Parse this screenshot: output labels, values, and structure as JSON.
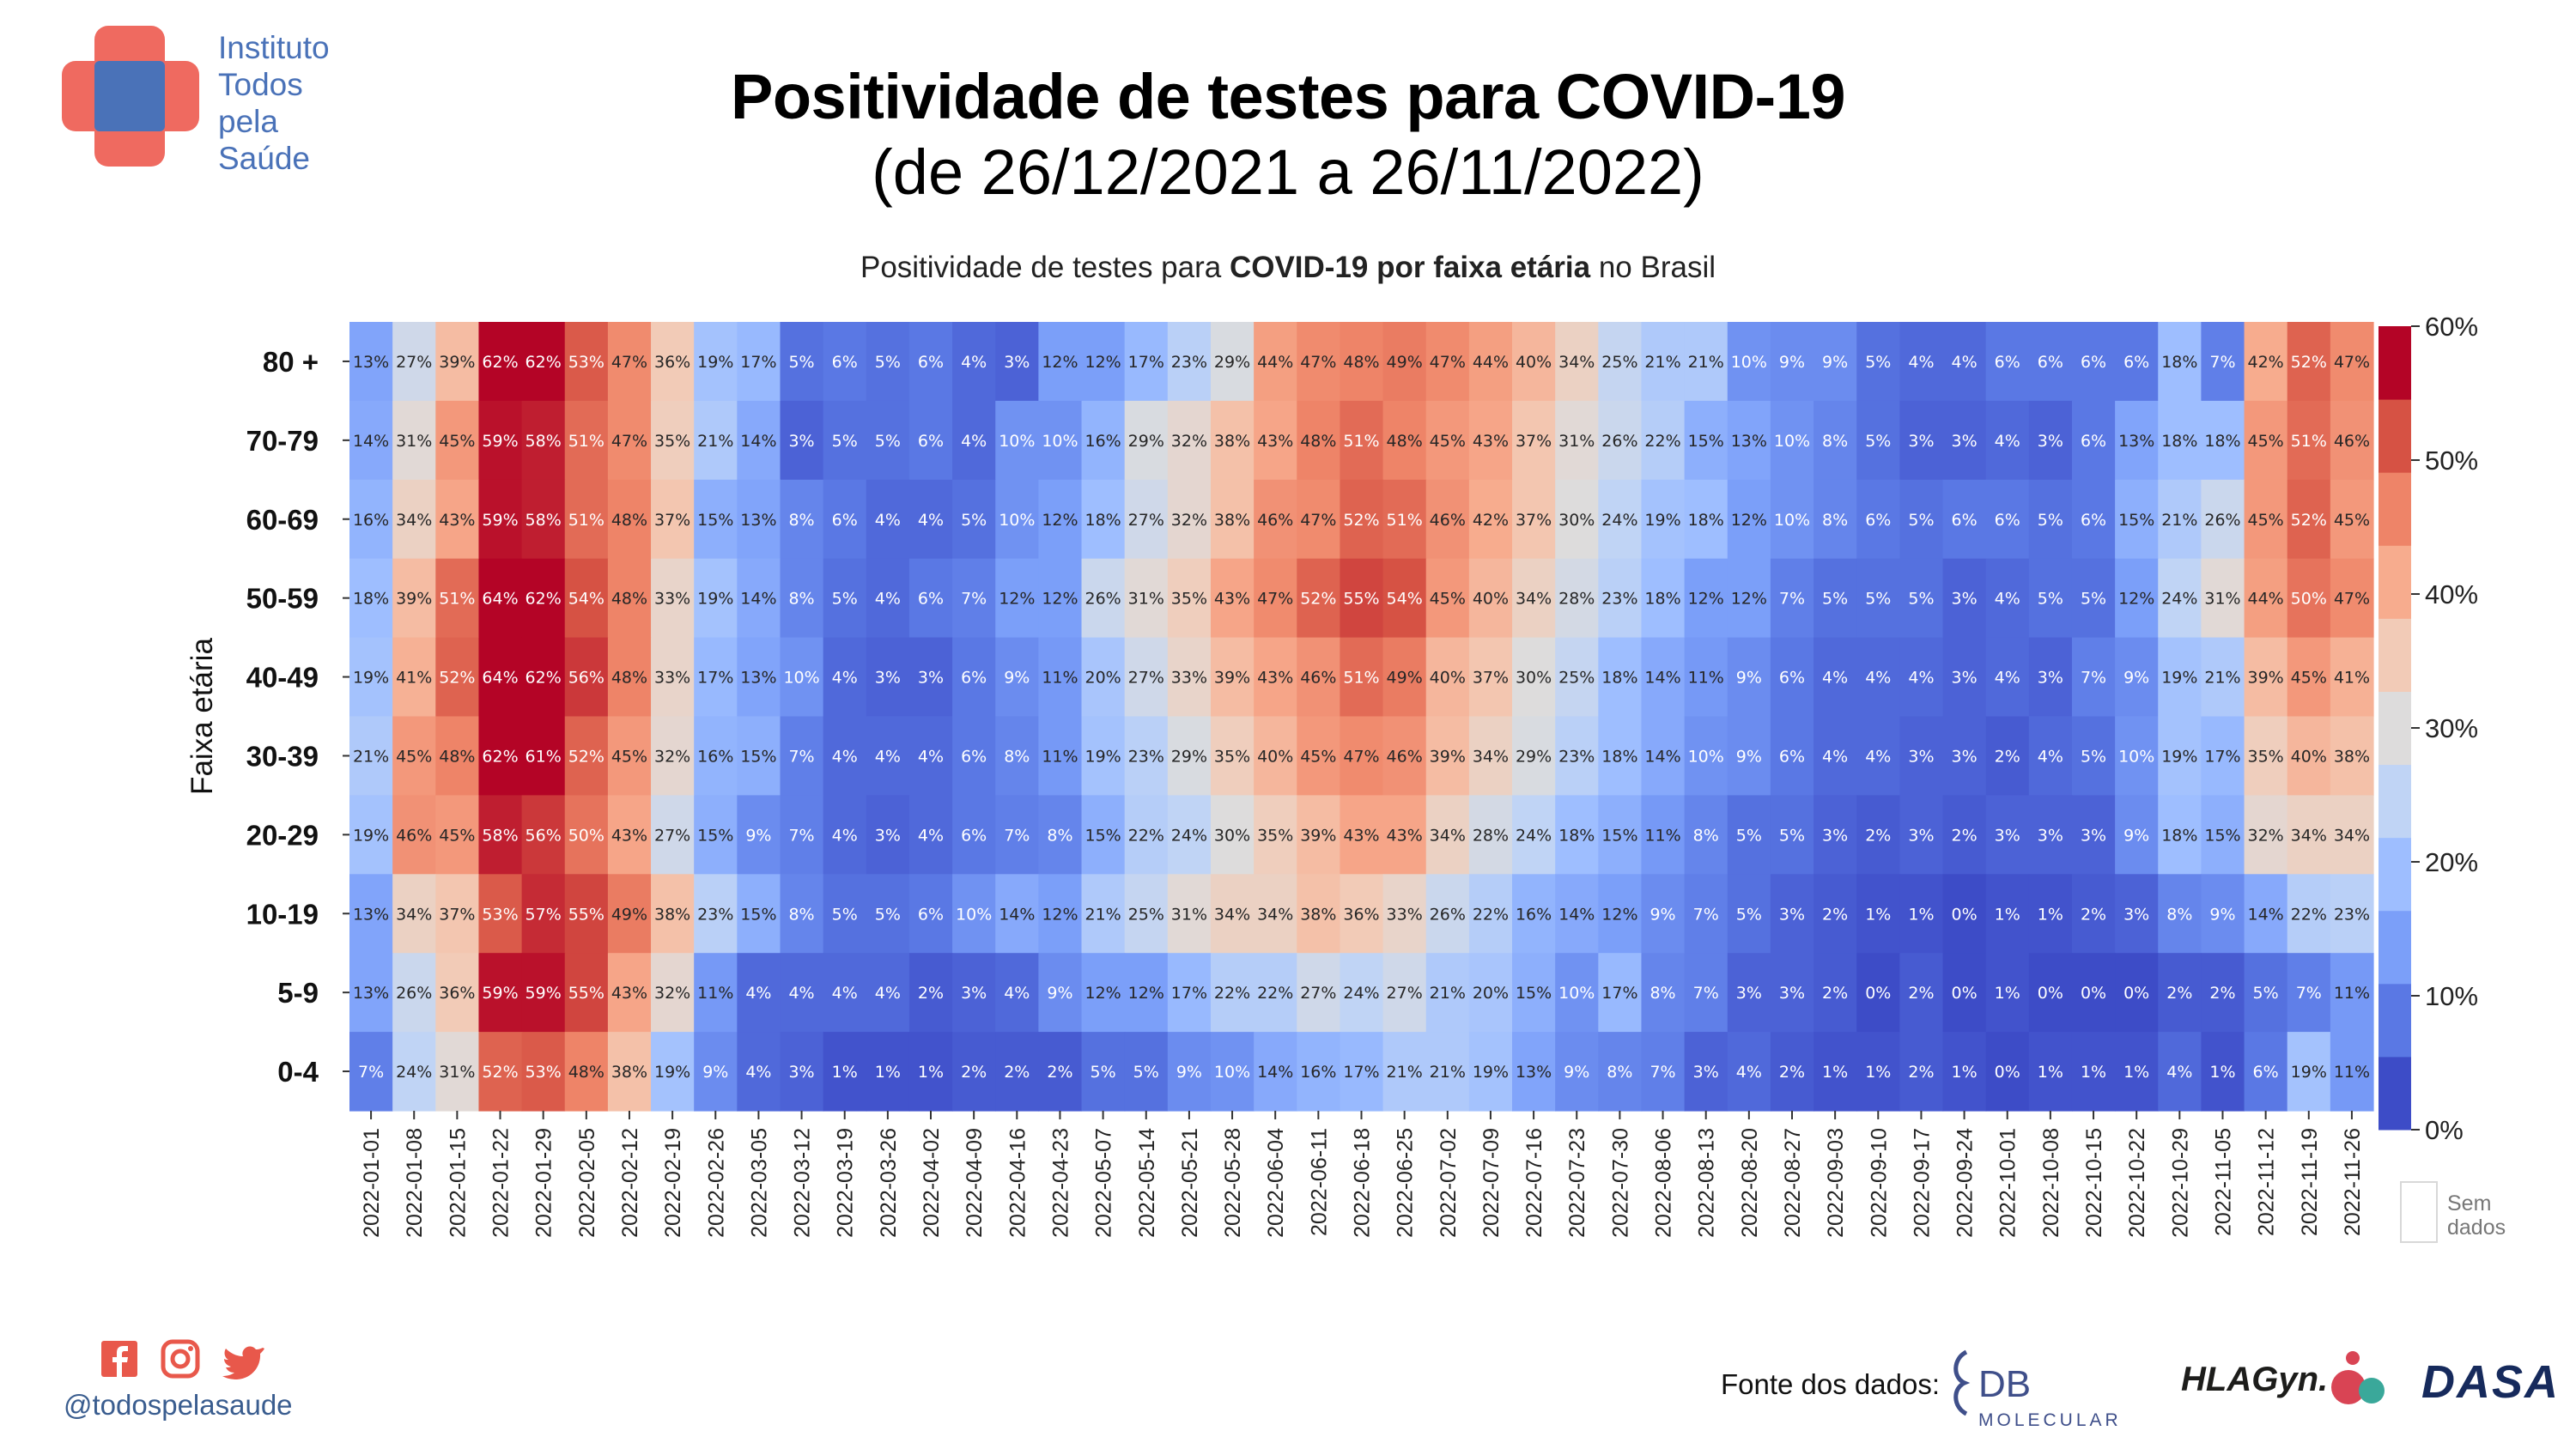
{
  "header": {
    "logo_lines": [
      "Instituto",
      "Todos",
      "pela",
      "Saúde"
    ],
    "title": "Positividade de testes para COVID-19",
    "subtitle": "(de 26/12/2021 a 26/11/2022)",
    "chart_subtitle": {
      "pre": "Positividade de testes para ",
      "bold1": "COVID-19 por faixa etária",
      "post": " no Brasil"
    }
  },
  "chart_data": {
    "type": "heatmap",
    "ylabel": "Faixa etária",
    "xlabel": "",
    "rows": [
      "80 +",
      "70-79",
      "60-69",
      "50-59",
      "40-49",
      "30-39",
      "20-29",
      "10-19",
      "5-9",
      "0-4"
    ],
    "columns": [
      "2022-01-01",
      "2022-01-08",
      "2022-01-15",
      "2022-01-22",
      "2022-01-29",
      "2022-02-05",
      "2022-02-12",
      "2022-02-19",
      "2022-02-26",
      "2022-03-05",
      "2022-03-12",
      "2022-03-19",
      "2022-03-26",
      "2022-04-02",
      "2022-04-09",
      "2022-04-16",
      "2022-04-23",
      "2022-05-07",
      "2022-05-14",
      "2022-05-21",
      "2022-05-28",
      "2022-06-04",
      "2022-06-11",
      "2022-06-18",
      "2022-06-25",
      "2022-07-02",
      "2022-07-09",
      "2022-07-16",
      "2022-07-23",
      "2022-07-30",
      "2022-08-06",
      "2022-08-13",
      "2022-08-20",
      "2022-08-27",
      "2022-09-03",
      "2022-09-10",
      "2022-09-17",
      "2022-09-24",
      "2022-10-01",
      "2022-10-08",
      "2022-10-15",
      "2022-10-22",
      "2022-10-29",
      "2022-11-05",
      "2022-11-12",
      "2022-11-19",
      "2022-11-26"
    ],
    "values": [
      [
        13,
        27,
        39,
        62,
        62,
        53,
        47,
        36,
        19,
        17,
        5,
        6,
        5,
        6,
        4,
        3,
        12,
        12,
        17,
        23,
        29,
        44,
        47,
        48,
        49,
        47,
        44,
        40,
        34,
        25,
        21,
        21,
        10,
        9,
        9,
        5,
        4,
        4,
        6,
        6,
        6,
        6,
        18,
        7,
        42,
        52,
        47
      ],
      [
        14,
        31,
        45,
        59,
        58,
        51,
        47,
        35,
        21,
        14,
        3,
        5,
        5,
        6,
        4,
        10,
        10,
        16,
        29,
        32,
        38,
        43,
        48,
        51,
        48,
        45,
        43,
        37,
        31,
        26,
        22,
        15,
        13,
        10,
        8,
        5,
        3,
        3,
        4,
        3,
        6,
        13,
        18,
        18,
        45,
        51,
        46
      ],
      [
        16,
        34,
        43,
        59,
        58,
        51,
        48,
        37,
        15,
        13,
        8,
        6,
        4,
        4,
        5,
        10,
        12,
        18,
        27,
        32,
        38,
        46,
        47,
        52,
        51,
        46,
        42,
        37,
        30,
        24,
        19,
        18,
        12,
        10,
        8,
        6,
        5,
        6,
        6,
        5,
        6,
        15,
        21,
        26,
        45,
        52,
        45
      ],
      [
        18,
        39,
        51,
        64,
        62,
        54,
        48,
        33,
        19,
        14,
        8,
        5,
        4,
        6,
        7,
        12,
        12,
        26,
        31,
        35,
        43,
        47,
        52,
        55,
        54,
        45,
        40,
        34,
        28,
        23,
        18,
        12,
        12,
        7,
        5,
        5,
        5,
        3,
        4,
        5,
        5,
        12,
        24,
        31,
        44,
        50,
        47
      ],
      [
        19,
        41,
        52,
        64,
        62,
        56,
        48,
        33,
        17,
        13,
        10,
        4,
        3,
        3,
        6,
        9,
        11,
        20,
        27,
        33,
        39,
        43,
        46,
        51,
        49,
        40,
        37,
        30,
        25,
        18,
        14,
        11,
        9,
        6,
        4,
        4,
        4,
        3,
        4,
        3,
        7,
        9,
        19,
        21,
        39,
        45,
        41
      ],
      [
        21,
        45,
        48,
        62,
        61,
        52,
        45,
        32,
        16,
        15,
        7,
        4,
        4,
        4,
        6,
        8,
        11,
        19,
        23,
        29,
        35,
        40,
        45,
        47,
        46,
        39,
        34,
        29,
        23,
        18,
        14,
        10,
        9,
        6,
        4,
        4,
        3,
        3,
        2,
        4,
        5,
        10,
        19,
        17,
        35,
        40,
        38
      ],
      [
        19,
        46,
        45,
        58,
        56,
        50,
        43,
        27,
        15,
        9,
        7,
        4,
        3,
        4,
        6,
        7,
        8,
        15,
        22,
        24,
        30,
        35,
        39,
        43,
        43,
        34,
        28,
        24,
        18,
        15,
        11,
        8,
        5,
        5,
        3,
        2,
        3,
        2,
        3,
        3,
        3,
        9,
        18,
        15,
        32,
        34,
        34
      ],
      [
        13,
        34,
        37,
        53,
        57,
        55,
        49,
        38,
        23,
        15,
        8,
        5,
        5,
        6,
        10,
        14,
        12,
        21,
        25,
        31,
        34,
        34,
        38,
        36,
        33,
        26,
        22,
        16,
        14,
        12,
        9,
        7,
        5,
        3,
        2,
        1,
        1,
        0,
        1,
        1,
        2,
        3,
        8,
        9,
        14,
        22,
        23
      ],
      [
        13,
        26,
        36,
        59,
        59,
        55,
        43,
        32,
        11,
        4,
        4,
        4,
        4,
        2,
        3,
        4,
        9,
        12,
        12,
        17,
        22,
        22,
        27,
        24,
        27,
        21,
        20,
        15,
        10,
        17,
        8,
        7,
        3,
        3,
        2,
        0,
        2,
        0,
        1,
        0,
        0,
        0,
        2,
        2,
        5,
        7,
        11
      ],
      [
        7,
        24,
        31,
        52,
        53,
        48,
        38,
        19,
        9,
        4,
        3,
        1,
        1,
        1,
        2,
        2,
        2,
        5,
        5,
        9,
        10,
        14,
        16,
        17,
        21,
        21,
        19,
        13,
        9,
        8,
        7,
        3,
        4,
        2,
        1,
        1,
        2,
        1,
        0,
        1,
        1,
        1,
        4,
        1,
        6,
        19,
        11
      ]
    ],
    "value_suffix": "%",
    "colorbar": {
      "ticks": [
        "0%",
        "10%",
        "20%",
        "30%",
        "40%",
        "50%",
        "60%"
      ],
      "range": [
        0,
        60
      ],
      "colors": [
        "#3d4cc7",
        "#5a78e4",
        "#7b9ff9",
        "#9ebeff",
        "#c0d4f5",
        "#dddcdc",
        "#f2cbb7",
        "#f7ac8e",
        "#ee8468",
        "#d65244",
        "#b40426"
      ]
    },
    "missing_label_lines": [
      "Sem",
      "dados"
    ],
    "grid": false
  },
  "footer": {
    "handle": "@todospelasaude",
    "source_label": "Fonte dos dados:",
    "db_logo_lines": [
      "DB",
      "MOLECULAR"
    ],
    "hla_logo_text": "HLAGyn.",
    "dasa_logo_text": "DASA"
  }
}
